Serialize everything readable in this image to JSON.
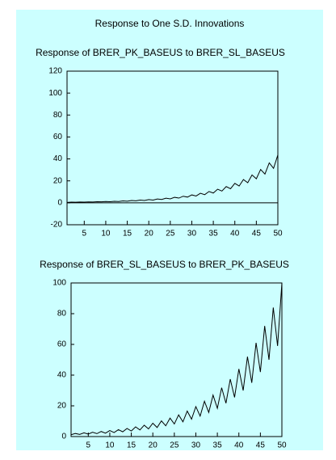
{
  "title": "Response to One S.D. Innovations",
  "chart_data": [
    {
      "type": "line",
      "title": "Response of BRER_PK_BASEUS to BRER_SL_BASEUS",
      "x": [
        1,
        2,
        3,
        4,
        5,
        6,
        7,
        8,
        9,
        10,
        11,
        12,
        13,
        14,
        15,
        16,
        17,
        18,
        19,
        20,
        21,
        22,
        23,
        24,
        25,
        26,
        27,
        28,
        29,
        30,
        31,
        32,
        33,
        34,
        35,
        36,
        37,
        38,
        39,
        40,
        41,
        42,
        43,
        44,
        45,
        46,
        47,
        48,
        49,
        50
      ],
      "values": [
        0.4,
        0.6,
        0.5,
        0.7,
        0.6,
        0.8,
        0.7,
        1.0,
        0.9,
        1.2,
        1.0,
        1.4,
        1.2,
        1.7,
        1.5,
        2.1,
        1.8,
        2.5,
        2.1,
        2.9,
        2.5,
        3.5,
        3.0,
        4.2,
        3.6,
        5.0,
        4.3,
        6.0,
        5.2,
        7.2,
        6.2,
        8.7,
        7.4,
        10.3,
        8.9,
        12.4,
        10.7,
        14.8,
        12.8,
        17.7,
        15.3,
        21.2,
        18.3,
        25.4,
        21.9,
        30.4,
        26.2,
        36.4,
        31.4,
        43.6
      ],
      "color": "#000000",
      "xlim": [
        1,
        50
      ],
      "xticks": [
        5,
        10,
        15,
        20,
        25,
        30,
        35,
        40,
        45,
        50
      ],
      "ylim": [
        -20,
        120
      ],
      "yticks": [
        -20,
        0,
        20,
        40,
        60,
        80,
        100,
        120
      ],
      "zero_line": true
    },
    {
      "type": "line",
      "title": "Response of BRER_SL_BASEUS to BRER_PK_BASEUS",
      "x": [
        1,
        2,
        3,
        4,
        5,
        6,
        7,
        8,
        9,
        10,
        11,
        12,
        13,
        14,
        15,
        16,
        17,
        18,
        19,
        20,
        21,
        22,
        23,
        24,
        25,
        26,
        27,
        28,
        29,
        30,
        31,
        32,
        33,
        34,
        35,
        36,
        37,
        38,
        39,
        40,
        41,
        42,
        43,
        44,
        45,
        46,
        47,
        48,
        49,
        50
      ],
      "values": [
        1.2,
        2.0,
        1.4,
        2.4,
        1.6,
        2.8,
        1.9,
        3.3,
        2.2,
        3.9,
        2.6,
        4.5,
        3.1,
        5.3,
        3.6,
        6.3,
        4.3,
        7.4,
        5.0,
        8.7,
        5.9,
        10.2,
        7.0,
        12.0,
        8.2,
        14.1,
        9.6,
        16.6,
        11.3,
        19.5,
        13.3,
        23.0,
        15.7,
        27.0,
        18.4,
        31.8,
        21.7,
        37.4,
        25.5,
        44,
        30,
        52,
        35,
        61,
        42,
        72,
        50,
        84,
        59,
        100
      ],
      "color": "#000000",
      "xlim": [
        1,
        50
      ],
      "xticks": [
        5,
        10,
        15,
        20,
        25,
        30,
        35,
        40,
        45,
        50
      ],
      "ylim": [
        0,
        100
      ],
      "yticks": [
        0,
        20,
        40,
        60,
        80,
        100
      ],
      "zero_line": false
    }
  ]
}
